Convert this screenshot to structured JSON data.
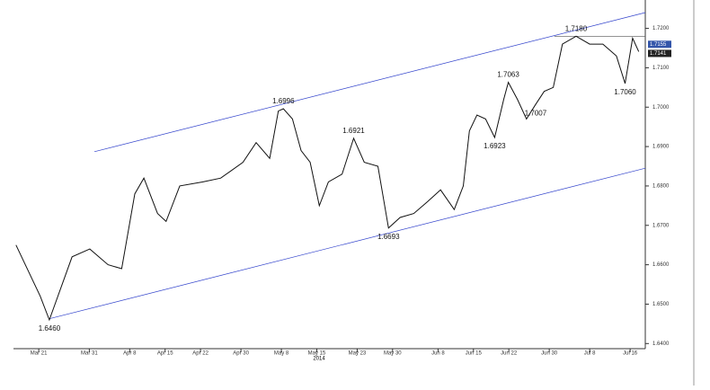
{
  "chart_data": {
    "type": "line",
    "x_sublabel": "2014",
    "xlim": [
      75,
      200
    ],
    "xticks": [
      {
        "value": 80,
        "label": "Mar 21"
      },
      {
        "value": 90,
        "label": "Mar 31"
      },
      {
        "value": 98,
        "label": "Apr 8"
      },
      {
        "value": 105,
        "label": "Apr 15"
      },
      {
        "value": 112,
        "label": "Apr 22"
      },
      {
        "value": 120,
        "label": "Apr 30"
      },
      {
        "value": 128,
        "label": "May 8"
      },
      {
        "value": 135,
        "label": "May 15"
      },
      {
        "value": 143,
        "label": "May 23"
      },
      {
        "value": 150,
        "label": "May 30"
      },
      {
        "value": 159,
        "label": "Jun 8"
      },
      {
        "value": 166,
        "label": "Jun 15"
      },
      {
        "value": 173,
        "label": "Jun 22"
      },
      {
        "value": 181,
        "label": "Jun 30"
      },
      {
        "value": 189,
        "label": "Jul 8"
      },
      {
        "value": 197,
        "label": "Jul 16"
      }
    ],
    "ylim": [
      1.6387,
      1.7272
    ],
    "yticks": [
      {
        "value": 1.64,
        "label": "1.6400"
      },
      {
        "value": 1.65,
        "label": "1.6500"
      },
      {
        "value": 1.66,
        "label": "1.6600"
      },
      {
        "value": 1.67,
        "label": "1.6700"
      },
      {
        "value": 1.68,
        "label": "1.6800"
      },
      {
        "value": 1.69,
        "label": "1.6900"
      },
      {
        "value": 1.7,
        "label": "1.7000"
      },
      {
        "value": 1.71,
        "label": "1.7100"
      },
      {
        "value": 1.72,
        "label": "1.7200"
      }
    ],
    "series": [
      {
        "color": "#111111",
        "x": [
          75.5,
          80.3,
          82.1,
          86.6,
          90.1,
          93.7,
          96.4,
          99,
          100.8,
          103.5,
          105.2,
          107.9,
          112.4,
          116,
          120.4,
          123,
          125.7,
          127.4,
          128.4,
          130.2,
          131.9,
          133.7,
          135.5,
          137.3,
          140,
          142.3,
          144.4,
          147.1,
          149.2,
          151.5,
          154.2,
          156.9,
          159.5,
          162.2,
          164,
          165.2,
          166.7,
          168.4,
          170.2,
          172,
          172.9,
          174.7,
          176.5,
          178.3,
          180,
          181.8,
          183.6,
          186.3,
          189,
          191.6,
          194.3,
          196,
          197.5,
          198.7
        ],
        "values": [
          1.665,
          1.652,
          1.646,
          1.662,
          1.664,
          1.66,
          1.659,
          1.678,
          1.682,
          1.673,
          1.671,
          1.68,
          1.681,
          1.682,
          1.686,
          1.691,
          1.687,
          1.699,
          1.6996,
          1.697,
          1.689,
          1.686,
          1.675,
          1.681,
          1.683,
          1.6921,
          1.686,
          1.685,
          1.6693,
          1.672,
          1.673,
          1.676,
          1.679,
          1.674,
          1.68,
          1.694,
          1.698,
          1.697,
          1.6923,
          1.702,
          1.7063,
          1.702,
          1.697,
          1.7007,
          1.704,
          1.705,
          1.716,
          1.718,
          1.716,
          1.716,
          1.713,
          1.706,
          1.7175,
          1.7141
        ]
      }
    ],
    "trendlines": [
      {
        "color": "#3344cc",
        "x": [
          91,
          200
        ],
        "values": [
          1.6887,
          1.724
        ]
      },
      {
        "color": "#3344cc",
        "x": [
          82.1,
          200
        ],
        "values": [
          1.6463,
          1.6845
        ]
      },
      {
        "color": "#555555",
        "x": [
          182,
          200
        ],
        "values": [
          1.718,
          1.718
        ]
      }
    ],
    "annotations": [
      {
        "x": 82.1,
        "value": 1.646,
        "label": "1.6460"
      },
      {
        "x": 128.4,
        "value": 1.6996,
        "label": "1.6996"
      },
      {
        "x": 142.3,
        "value": 1.6921,
        "label": "1.6921"
      },
      {
        "x": 149.2,
        "value": 1.6693,
        "label": "1.6693"
      },
      {
        "x": 172.9,
        "value": 1.7063,
        "label": "1.7063"
      },
      {
        "x": 170.2,
        "value": 1.6923,
        "label": "1.6923"
      },
      {
        "x": 178.3,
        "value": 1.7007,
        "label": "1.7007"
      },
      {
        "x": 186.3,
        "value": 1.718,
        "label": "1.7180"
      },
      {
        "x": 196,
        "value": 1.706,
        "label": "1.7060"
      }
    ],
    "price_tags": [
      {
        "value": 1.7155,
        "label": "1.7155",
        "color": "#3355aa"
      },
      {
        "value": 1.7141,
        "label": "1.7141",
        "color": "#222222"
      }
    ]
  }
}
